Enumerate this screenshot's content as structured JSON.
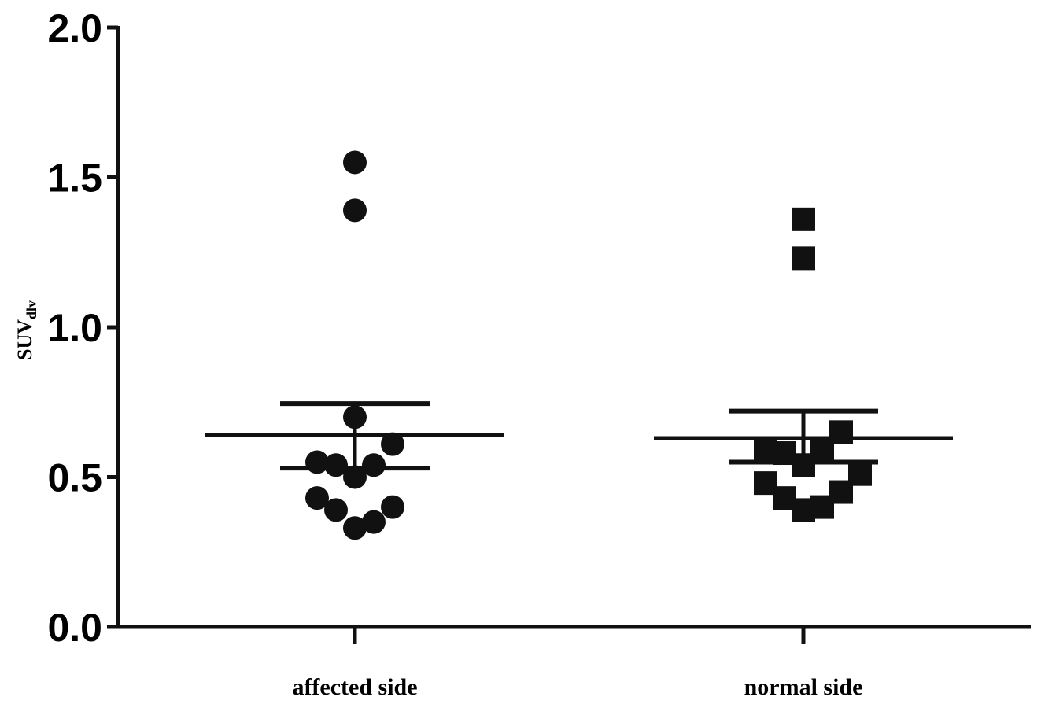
{
  "chart_data": {
    "type": "scatter",
    "ylabel": {
      "main": "SUV",
      "sub": "dlv"
    },
    "ylim": [
      0,
      2.0
    ],
    "yticks": [
      "0.0",
      "0.5",
      "1.0",
      "1.5",
      "2.0"
    ],
    "categories": [
      "affected side",
      "normal side"
    ],
    "series": [
      {
        "category": "affected side",
        "marker": "circle",
        "points": [
          {
            "offset": 0.0,
            "y": 1.55
          },
          {
            "offset": 0.0,
            "y": 1.39
          },
          {
            "offset": 0.0,
            "y": 0.7
          },
          {
            "offset": -0.16,
            "y": 0.55
          },
          {
            "offset": -0.08,
            "y": 0.54
          },
          {
            "offset": 0.08,
            "y": 0.54
          },
          {
            "offset": 0.16,
            "y": 0.61
          },
          {
            "offset": 0.0,
            "y": 0.5
          },
          {
            "offset": -0.16,
            "y": 0.43
          },
          {
            "offset": -0.08,
            "y": 0.39
          },
          {
            "offset": 0.0,
            "y": 0.33
          },
          {
            "offset": 0.08,
            "y": 0.35
          },
          {
            "offset": 0.16,
            "y": 0.4
          }
        ],
        "mean": 0.64,
        "error_upper": 0.745,
        "error_lower": 0.53
      },
      {
        "category": "normal side",
        "marker": "square",
        "points": [
          {
            "offset": 0.0,
            "y": 1.36
          },
          {
            "offset": 0.0,
            "y": 1.23
          },
          {
            "offset": 0.16,
            "y": 0.65
          },
          {
            "offset": -0.16,
            "y": 0.59
          },
          {
            "offset": -0.08,
            "y": 0.58
          },
          {
            "offset": 0.08,
            "y": 0.59
          },
          {
            "offset": 0.0,
            "y": 0.54
          },
          {
            "offset": 0.24,
            "y": 0.51
          },
          {
            "offset": -0.16,
            "y": 0.48
          },
          {
            "offset": -0.08,
            "y": 0.43
          },
          {
            "offset": 0.0,
            "y": 0.39
          },
          {
            "offset": 0.08,
            "y": 0.4
          },
          {
            "offset": 0.16,
            "y": 0.45
          }
        ],
        "mean": 0.63,
        "error_upper": 0.72,
        "error_lower": 0.55
      }
    ],
    "colors": {
      "marker": "#111111",
      "axis": "#111111"
    }
  }
}
